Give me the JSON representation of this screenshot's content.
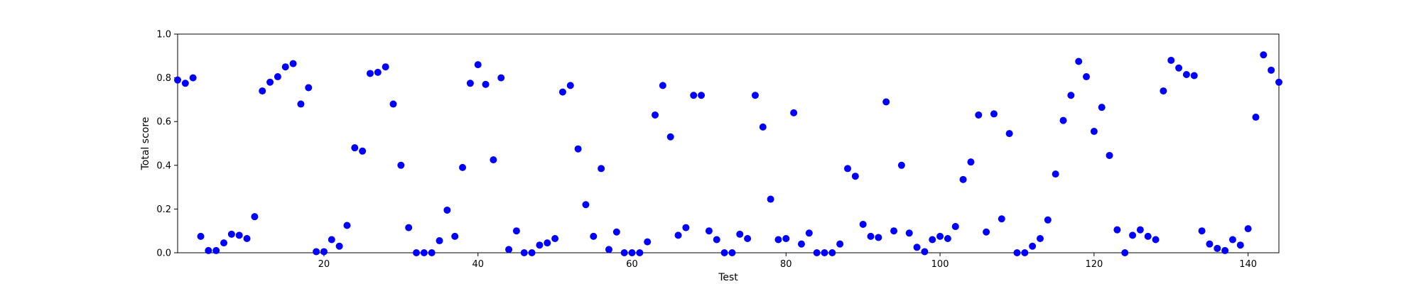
{
  "chart_data": {
    "type": "scatter",
    "xlabel": "Test",
    "ylabel": "Total score",
    "xlim": [
      1,
      144
    ],
    "ylim": [
      0,
      1
    ],
    "xticks": [
      20,
      40,
      60,
      80,
      100,
      120,
      140
    ],
    "xtick_labels": [
      "20",
      "40",
      "60",
      "80",
      "100",
      "120",
      "140"
    ],
    "yticks": [
      0,
      0.2,
      0.4,
      0.6,
      0.8,
      1.0
    ],
    "ytick_labels": [
      "0.0",
      "0.2",
      "0.4",
      "0.6",
      "0.8",
      "1.0"
    ],
    "marker_color": "#0000ff",
    "grid": false,
    "series": [
      {
        "x": [
          1,
          2,
          3,
          4,
          5,
          6,
          7,
          8,
          9,
          10,
          11,
          12,
          13,
          14,
          15,
          16,
          17,
          18,
          19,
          20,
          21,
          22,
          23,
          24,
          25,
          26,
          27,
          28,
          29,
          30,
          31,
          32,
          33,
          34,
          35,
          36,
          37,
          38,
          39,
          40,
          41,
          42,
          43,
          44,
          45,
          46,
          47,
          48,
          49,
          50,
          51,
          52,
          53,
          54,
          55,
          56,
          57,
          58,
          59,
          60,
          61,
          62,
          63,
          64,
          65,
          66,
          67,
          68,
          69,
          70,
          71,
          72,
          73,
          74,
          75,
          76,
          77,
          78,
          79,
          80,
          81,
          82,
          83,
          84,
          85,
          86,
          87,
          88,
          89,
          90,
          91,
          92,
          93,
          94,
          95,
          96,
          97,
          98,
          99,
          100,
          101,
          102,
          103,
          104,
          105,
          106,
          107,
          108,
          109,
          110,
          111,
          112,
          113,
          114,
          115,
          116,
          117,
          118,
          119,
          120,
          121,
          122,
          123,
          124,
          125,
          126,
          127,
          128,
          129,
          130,
          131,
          132,
          133,
          134,
          135,
          136,
          137,
          138,
          139,
          140,
          141,
          142,
          143,
          144
        ],
        "y": [
          0.79,
          0.775,
          0.8,
          0.075,
          0.01,
          0.01,
          0.045,
          0.085,
          0.08,
          0.065,
          0.165,
          0.74,
          0.78,
          0.805,
          0.85,
          0.865,
          0.68,
          0.755,
          0.005,
          0.005,
          0.06,
          0.03,
          0.125,
          0.48,
          0.465,
          0.82,
          0.825,
          0.85,
          0.68,
          0.4,
          0.115,
          0.0,
          0.0,
          0.0,
          0.055,
          0.195,
          0.075,
          0.39,
          0.775,
          0.86,
          0.77,
          0.425,
          0.8,
          0.015,
          0.1,
          0.0,
          0.0,
          0.035,
          0.045,
          0.065,
          0.735,
          0.765,
          0.475,
          0.22,
          0.075,
          0.385,
          0.015,
          0.095,
          0.0,
          0.0,
          0.0,
          0.05,
          0.63,
          0.765,
          0.53,
          0.08,
          0.115,
          0.72,
          0.72,
          0.1,
          0.06,
          0.0,
          0.0,
          0.085,
          0.065,
          0.72,
          0.575,
          0.245,
          0.06,
          0.065,
          0.64,
          0.04,
          0.09,
          0.0,
          0.0,
          0.0,
          0.04,
          0.385,
          0.35,
          0.13,
          0.075,
          0.07,
          0.69,
          0.1,
          0.4,
          0.09,
          0.025,
          0.005,
          0.06,
          0.075,
          0.065,
          0.12,
          0.335,
          0.415,
          0.63,
          0.095,
          0.635,
          0.155,
          0.545,
          0.0,
          0.0,
          0.03,
          0.065,
          0.15,
          0.36,
          0.605,
          0.72,
          0.875,
          0.805,
          0.555,
          0.665,
          0.445,
          0.105,
          0.0,
          0.08,
          0.105,
          0.075,
          0.06,
          0.74,
          0.88,
          0.845,
          0.815,
          0.81,
          0.1,
          0.04,
          0.02,
          0.01,
          0.06,
          0.035,
          0.11,
          0.62,
          0.905,
          0.835,
          0.78
        ]
      }
    ]
  }
}
